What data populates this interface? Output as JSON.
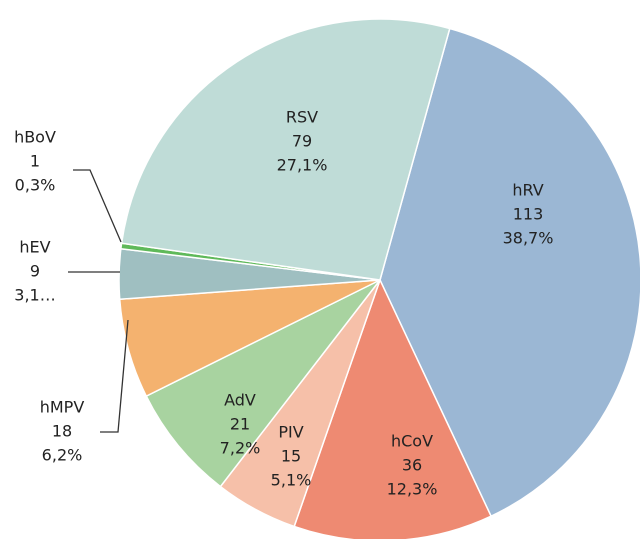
{
  "chart_data": {
    "type": "pie",
    "categories": [
      "hRV",
      "hCoV",
      "PIV",
      "AdV",
      "hMPV",
      "hEV",
      "hBoV",
      "RSV"
    ],
    "values": [
      113,
      36,
      15,
      21,
      18,
      9,
      1,
      79
    ],
    "percent_labels": [
      "38,7%",
      "12,3%",
      "5,1%",
      "7,2%",
      "6,2%",
      "3,1…",
      "0,3%",
      "27,1%"
    ],
    "colors": [
      "#9bb7d4",
      "#ee8a72",
      "#f6c0a9",
      "#a8d3a0",
      "#f4b26f",
      "#9fbfc1",
      "#5fb95a",
      "#bfdcd7"
    ]
  }
}
